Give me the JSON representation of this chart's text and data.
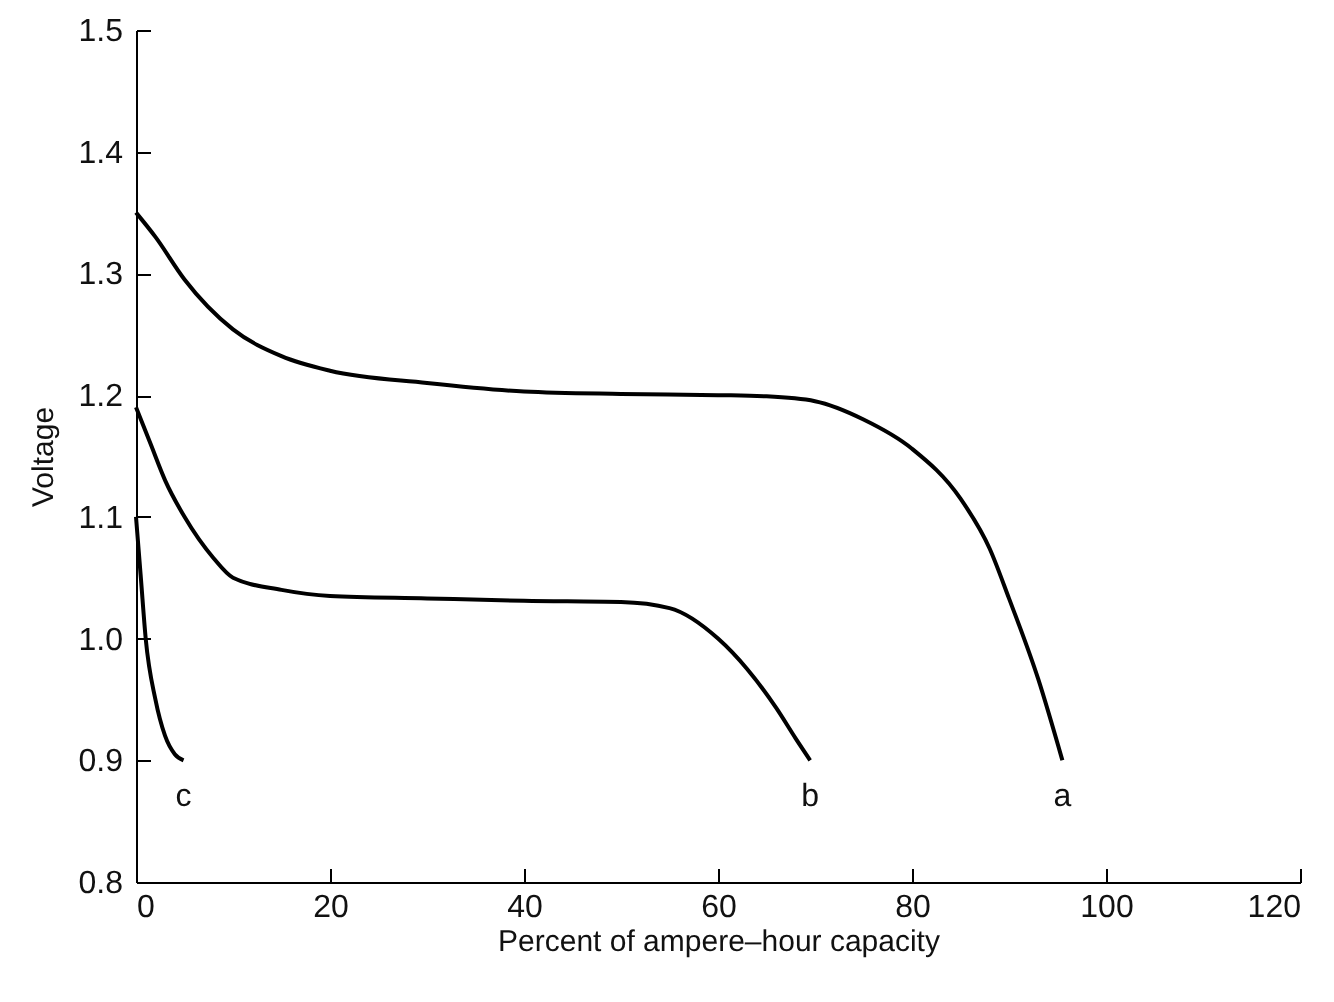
{
  "chart_data": {
    "type": "line",
    "xlabel": "Percent of ampere–hour capacity",
    "ylabel": "Voltage",
    "xlim": [
      0,
      120
    ],
    "xticks": [
      0,
      20,
      40,
      60,
      80,
      100,
      120
    ],
    "ylim": [
      0.8,
      1.5
    ],
    "yticks": [
      0.8,
      0.9,
      {
        "value": 1,
        "label": "1.0"
      },
      1.1,
      1.2,
      1.3,
      1.4,
      1.5
    ],
    "grid": false,
    "marker": "none",
    "line_style": "solid",
    "series": [
      {
        "name": "a",
        "color": "#000000",
        "x": [
          0,
          2,
          5,
          10,
          15,
          20,
          30,
          40,
          50,
          60,
          65,
          70,
          75,
          80,
          85,
          88,
          90,
          93,
          95.5
        ],
        "values": [
          1.35,
          1.33,
          1.295,
          1.254,
          1.232,
          1.22,
          1.21,
          1.203,
          1.201,
          1.2,
          1.199,
          1.195,
          1.18,
          1.156,
          1.115,
          1.074,
          1.033,
          0.967,
          0.9
        ]
      },
      {
        "name": "b",
        "color": "#000000",
        "x": [
          0,
          1.5,
          3,
          5,
          8,
          10,
          15,
          20,
          30,
          40,
          50,
          55,
          60,
          63,
          66,
          68,
          69.5
        ],
        "values": [
          1.19,
          1.16,
          1.13,
          1.1,
          1.066,
          1.05,
          1.04,
          1.035,
          1.033,
          1.031,
          1.03,
          1.025,
          1.0,
          0.975,
          0.943,
          0.918,
          0.9
        ]
      },
      {
        "name": "c",
        "color": "#000000",
        "x": [
          0,
          0.5,
          1,
          2,
          3,
          4,
          4.9
        ],
        "values": [
          1.1,
          1.05,
          1.0,
          0.95,
          0.92,
          0.905,
          0.9
        ]
      }
    ]
  }
}
